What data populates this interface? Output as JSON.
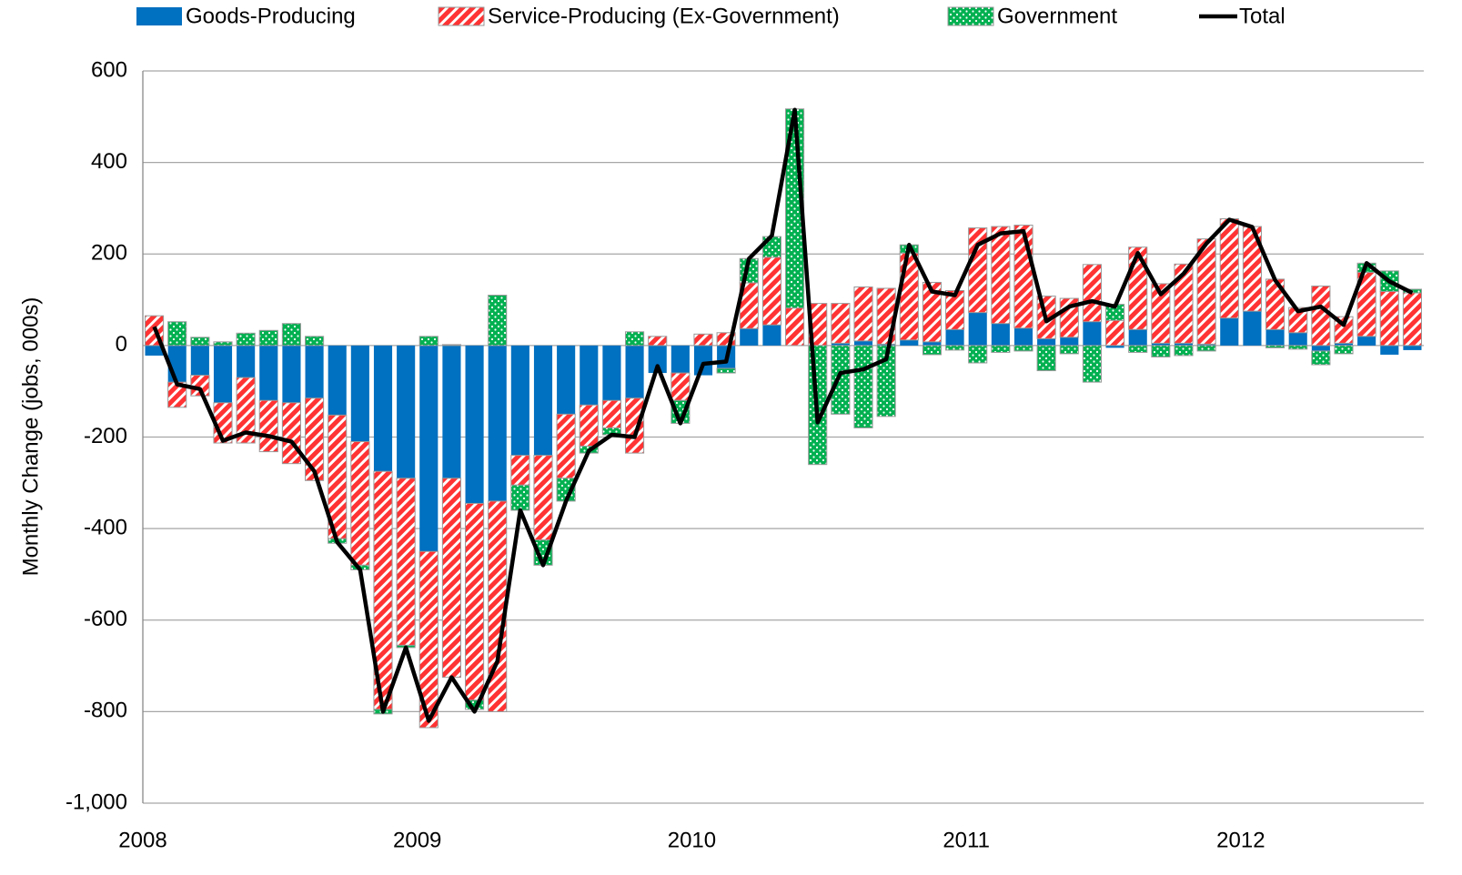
{
  "chart_data": {
    "type": "stacked_bar_line",
    "y_label": "Monthly Change (jobs, 000s)",
    "categories": [
      "2008",
      null,
      null,
      null,
      null,
      null,
      null,
      null,
      null,
      null,
      null,
      null,
      "2009",
      null,
      null,
      null,
      null,
      null,
      null,
      null,
      null,
      null,
      null,
      null,
      "2010",
      null,
      null,
      null,
      null,
      null,
      null,
      null,
      null,
      null,
      null,
      null,
      "2011",
      null,
      null,
      null,
      null,
      null,
      null,
      null,
      null,
      null,
      null,
      null,
      "2012",
      null,
      null,
      null,
      null,
      null,
      null,
      null
    ],
    "series": [
      {
        "name": "Goods-Producing",
        "color": "#0070c0",
        "values": [
          -22,
          -80,
          -65,
          -125,
          -70,
          -120,
          -125,
          -115,
          -152,
          -210,
          -275,
          -290,
          -450,
          -290,
          -345,
          -340,
          -240,
          -240,
          -150,
          -130,
          -120,
          -115,
          -60,
          -60,
          -65,
          -50,
          37,
          45,
          0,
          0,
          5,
          10,
          3,
          12,
          8,
          35,
          72,
          48,
          38,
          15,
          18,
          52,
          -5,
          35,
          5,
          5,
          3,
          60,
          75,
          35,
          28,
          -12,
          5,
          20,
          -20,
          -10
        ]
      },
      {
        "name": "Service-Producing (Ex-Government)",
        "color": "#ff3333",
        "values": [
          65,
          -55,
          -45,
          -88,
          -143,
          -112,
          -133,
          -180,
          -270,
          -270,
          -520,
          -365,
          -385,
          -435,
          -430,
          -460,
          -65,
          -185,
          -140,
          -90,
          -60,
          -120,
          20,
          -60,
          25,
          28,
          100,
          148,
          82,
          92,
          87,
          118,
          122,
          190,
          130,
          85,
          185,
          212,
          225,
          93,
          85,
          125,
          55,
          180,
          130,
          173,
          230,
          217,
          185,
          110,
          55,
          130,
          58,
          140,
          118,
          115
        ]
      },
      {
        "name": "Government",
        "color": "#00b050",
        "values": [
          0,
          52,
          18,
          8,
          27,
          33,
          48,
          20,
          -10,
          -10,
          -10,
          -5,
          20,
          2,
          -20,
          110,
          -55,
          -55,
          -50,
          -15,
          -15,
          30,
          0,
          -50,
          0,
          -10,
          53,
          45,
          435,
          -260,
          -150,
          -180,
          -155,
          18,
          -20,
          -10,
          -38,
          -15,
          -12,
          -55,
          -18,
          -80,
          35,
          -15,
          -25,
          -22,
          -12,
          0,
          0,
          -5,
          -8,
          -30,
          -18,
          20,
          45,
          8
        ]
      },
      {
        "name": "Total",
        "color": "#000000",
        "values": [
          41,
          -85,
          -95,
          -208,
          -190,
          -198,
          -210,
          -275,
          -430,
          -490,
          -800,
          -660,
          -820,
          -725,
          -800,
          -690,
          -360,
          -480,
          -340,
          -230,
          -195,
          -200,
          -45,
          -170,
          -40,
          -35,
          190,
          240,
          515,
          -168,
          -60,
          -52,
          -30,
          220,
          118,
          110,
          220,
          245,
          250,
          53,
          85,
          97,
          85,
          202,
          112,
          157,
          223,
          275,
          259,
          143,
          75,
          85,
          45,
          180,
          140,
          115
        ]
      }
    ],
    "ylim": [
      -1000,
      600
    ],
    "yticks": [
      {
        "value": -1000,
        "label": "-1,000"
      },
      -800,
      -600,
      -400,
      -200,
      0,
      200,
      400,
      600
    ],
    "grid": true,
    "legend": "top"
  }
}
